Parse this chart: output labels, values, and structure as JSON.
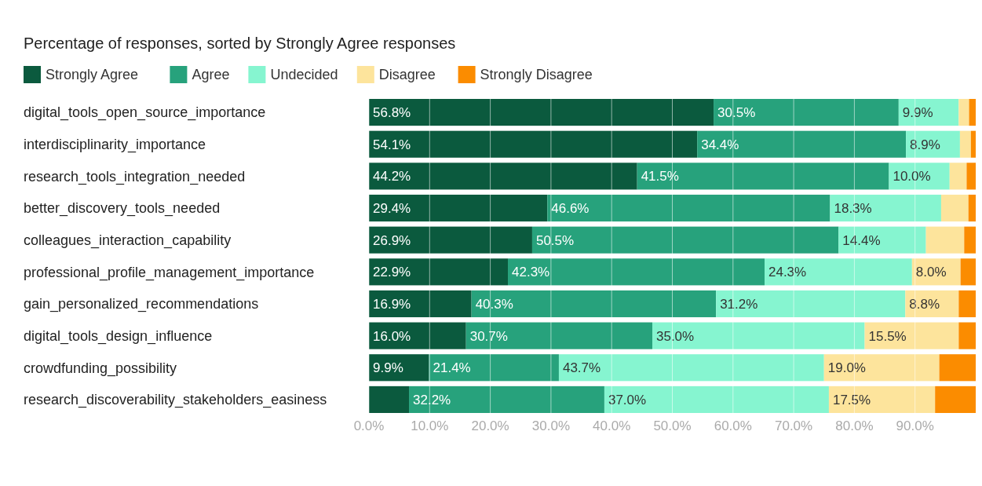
{
  "chart_data": {
    "type": "bar",
    "orientation": "horizontal",
    "stacked": true,
    "title": "Percentage of responses, sorted by Strongly Agree responses",
    "categories": [
      "digital_tools_open_source_importance",
      "interdisciplinarity_importance",
      "research_tools_integration_needed",
      "better_discovery_tools_needed",
      "colleagues_interaction_capability",
      "professional_profile_management_importance",
      "gain_personalized_recommendations",
      "digital_tools_design_influence",
      "crowdfunding_possibility",
      "research_discoverability_stakeholders_easiness"
    ],
    "series": [
      {
        "name": "Strongly Agree",
        "color": "#0b5a3e",
        "values": [
          56.8,
          54.1,
          44.2,
          29.4,
          26.9,
          22.9,
          16.9,
          16.0,
          9.9,
          6.6
        ],
        "value_labels": [
          "56.8%",
          "54.1%",
          "44.2%",
          "29.4%",
          "26.9%",
          "22.9%",
          "16.9%",
          "16.0%",
          "9.9%",
          null
        ]
      },
      {
        "name": "Agree",
        "color": "#27a27c",
        "values": [
          30.5,
          34.4,
          41.5,
          46.6,
          50.5,
          42.3,
          40.3,
          30.7,
          21.4,
          32.2
        ],
        "value_labels": [
          "30.5%",
          "34.4%",
          "41.5%",
          "46.6%",
          "50.5%",
          "42.3%",
          "40.3%",
          "30.7%",
          "21.4%",
          "32.2%"
        ]
      },
      {
        "name": "Undecided",
        "color": "#86f5d0",
        "values": [
          9.9,
          8.9,
          10.0,
          18.3,
          14.4,
          24.3,
          31.2,
          35.0,
          43.7,
          37.0
        ],
        "value_labels": [
          "9.9%",
          "8.9%",
          "10.0%",
          "18.3%",
          "14.4%",
          "24.3%",
          "31.2%",
          "35.0%",
          "43.7%",
          "37.0%"
        ]
      },
      {
        "name": "Disagree",
        "color": "#fde49c",
        "values": [
          1.7,
          1.8,
          2.8,
          4.5,
          6.3,
          8.0,
          8.8,
          15.5,
          19.0,
          17.5
        ],
        "value_labels": [
          null,
          null,
          null,
          null,
          null,
          "8.0%",
          "8.8%",
          "15.5%",
          "19.0%",
          "17.5%"
        ]
      },
      {
        "name": "Strongly Disagree",
        "color": "#fb8c00",
        "values": [
          1.1,
          0.8,
          1.5,
          1.2,
          1.9,
          2.5,
          2.8,
          2.8,
          6.0,
          6.7
        ],
        "value_labels": [
          null,
          null,
          null,
          null,
          null,
          null,
          null,
          null,
          null,
          null
        ]
      }
    ],
    "xlim": [
      0,
      100
    ],
    "xticks": [
      {
        "value": 0,
        "label": "0.0%"
      },
      {
        "value": 10,
        "label": "10.0%"
      },
      {
        "value": 20,
        "label": "20.0%"
      },
      {
        "value": 30,
        "label": "30.0%"
      },
      {
        "value": 40,
        "label": "40.0%"
      },
      {
        "value": 50,
        "label": "50.0%"
      },
      {
        "value": 60,
        "label": "60.0%"
      },
      {
        "value": 70,
        "label": "70.0%"
      },
      {
        "value": 80,
        "label": "80.0%"
      },
      {
        "value": 90,
        "label": "90.0%"
      }
    ],
    "grid": "x",
    "legend": "top"
  }
}
